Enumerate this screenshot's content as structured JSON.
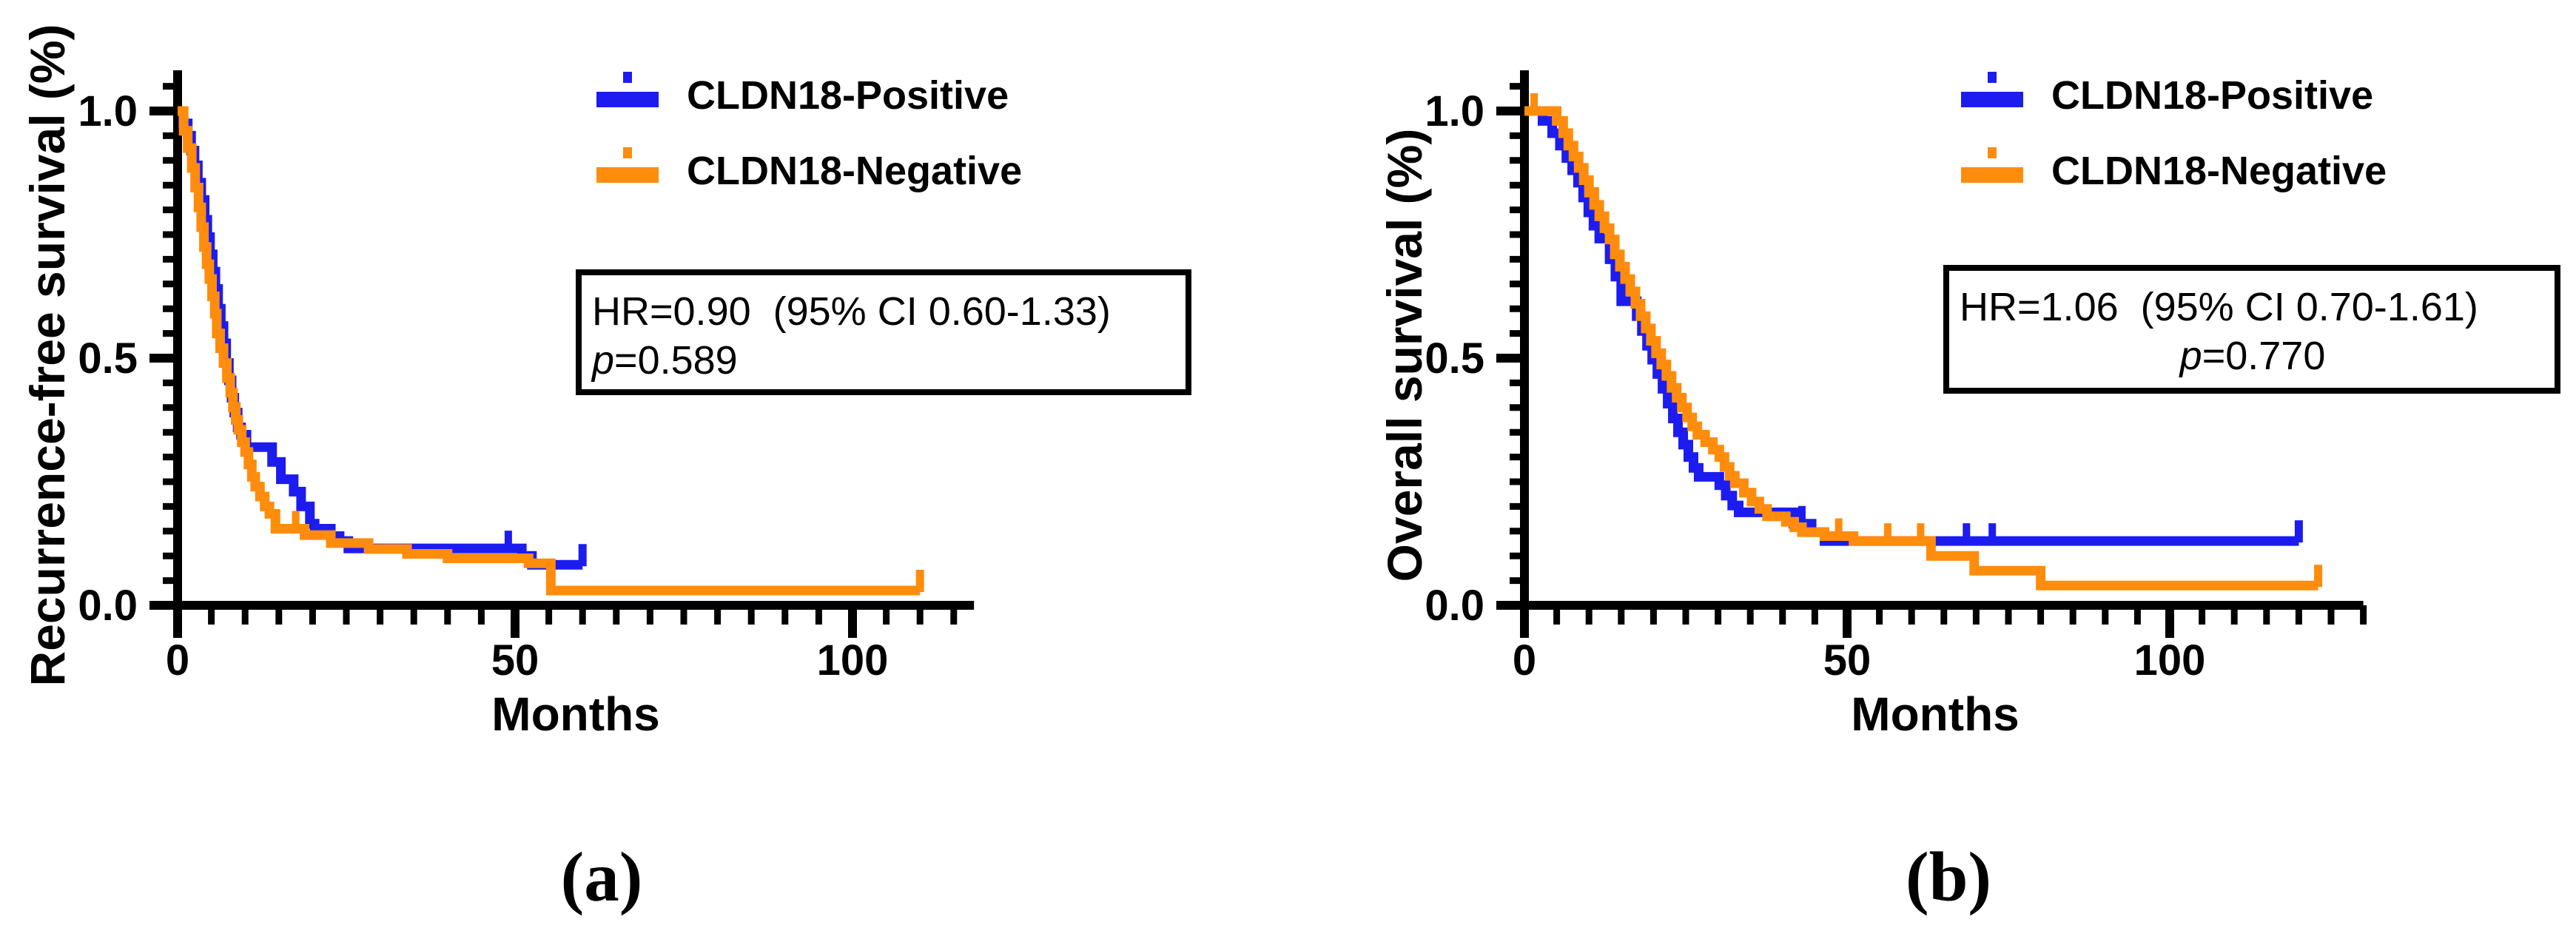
{
  "chart_data": [
    {
      "type": "line",
      "subtype": "kaplan-meier-step",
      "panel_label": "(a)",
      "ylabel": "Recurrence-free survival (%)",
      "xlabel": "Months",
      "xlim": [
        0,
        118
      ],
      "ylim": [
        0,
        1.08
      ],
      "grid": false,
      "legend_position": "top-right-inside",
      "x_ticks": {
        "major": [
          0,
          50,
          100
        ],
        "labels": [
          "0",
          "50",
          "100"
        ],
        "minor_step": 5
      },
      "y_ticks": {
        "major": [
          0,
          0.5,
          1.0
        ],
        "labels": [
          "0.0",
          "0.5",
          "1.0"
        ],
        "minor_step": 0.05
      },
      "annotation": {
        "line1": "HR=0.90  (95% CI 0.60-1.33)",
        "p_symbol": "p",
        "p_value": "=0.589"
      },
      "series": [
        {
          "name": "CLDN18-Positive",
          "color": "#1c1cf0",
          "steps": [
            [
              0,
              1
            ],
            [
              0.8,
              0.975
            ],
            [
              1.5,
              0.95
            ],
            [
              2,
              0.92
            ],
            [
              2.5,
              0.89
            ],
            [
              3,
              0.855
            ],
            [
              3.5,
              0.82
            ],
            [
              4,
              0.78
            ],
            [
              4.4,
              0.745
            ],
            [
              4.8,
              0.71
            ],
            [
              5.2,
              0.675
            ],
            [
              5.6,
              0.64
            ],
            [
              6,
              0.6
            ],
            [
              6.4,
              0.565
            ],
            [
              6.8,
              0.53
            ],
            [
              7.2,
              0.49
            ],
            [
              7.6,
              0.455
            ],
            [
              8,
              0.42
            ],
            [
              8.4,
              0.39
            ],
            [
              8.9,
              0.36
            ],
            [
              9.4,
              0.345
            ],
            [
              10.2,
              0.32
            ],
            [
              14,
              0.29
            ],
            [
              15.3,
              0.255
            ],
            [
              17.2,
              0.23
            ],
            [
              18.3,
              0.2
            ],
            [
              19.6,
              0.165
            ],
            [
              20.3,
              0.155
            ],
            [
              22.7,
              0.14
            ],
            [
              24,
              0.13
            ],
            [
              25.3,
              0.115
            ],
            [
              51,
              0.1
            ],
            [
              52.5,
              0.082
            ],
            [
              60,
              0.082
            ]
          ],
          "censors": [
            [
              49,
              0.115
            ]
          ],
          "end_tick": true
        },
        {
          "name": "CLDN18-Negative",
          "color": "#ff8c0c",
          "steps": [
            [
              0,
              1
            ],
            [
              0.9,
              0.96
            ],
            [
              1.5,
              0.925
            ],
            [
              2.1,
              0.885
            ],
            [
              2.6,
              0.845
            ],
            [
              3.1,
              0.805
            ],
            [
              3.5,
              0.765
            ],
            [
              3.9,
              0.725
            ],
            [
              4.3,
              0.69
            ],
            [
              4.7,
              0.66
            ],
            [
              5.1,
              0.625
            ],
            [
              5.5,
              0.59
            ],
            [
              5.8,
              0.55
            ],
            [
              6.3,
              0.52
            ],
            [
              6.8,
              0.49
            ],
            [
              7.3,
              0.46
            ],
            [
              7.8,
              0.43
            ],
            [
              8.2,
              0.4
            ],
            [
              8.6,
              0.375
            ],
            [
              9,
              0.355
            ],
            [
              9.5,
              0.33
            ],
            [
              10,
              0.31
            ],
            [
              10.5,
              0.285
            ],
            [
              11,
              0.26
            ],
            [
              11.5,
              0.24
            ],
            [
              12.2,
              0.22
            ],
            [
              12.9,
              0.2
            ],
            [
              13.6,
              0.185
            ],
            [
              14.5,
              0.155
            ],
            [
              18.8,
              0.142
            ],
            [
              22.7,
              0.126
            ],
            [
              28.3,
              0.114
            ],
            [
              34,
              0.104
            ],
            [
              40,
              0.095
            ],
            [
              52,
              0.085
            ],
            [
              55.3,
              0.03
            ],
            [
              110,
              0.03
            ]
          ],
          "censors": [
            [
              8.8,
              0.375
            ],
            [
              17.5,
              0.155
            ]
          ],
          "end_tick": true
        }
      ]
    },
    {
      "type": "line",
      "subtype": "kaplan-meier-step",
      "panel_label": "(b)",
      "ylabel": "Overall survival (%)",
      "xlabel": "Months",
      "xlim": [
        0,
        130
      ],
      "ylim": [
        0,
        1.08
      ],
      "grid": false,
      "legend_position": "top-right-inside",
      "x_ticks": {
        "major": [
          0,
          50,
          100
        ],
        "labels": [
          "0",
          "50",
          "100"
        ],
        "minor_step": 5
      },
      "y_ticks": {
        "major": [
          0,
          0.5,
          1.0
        ],
        "labels": [
          "0.0",
          "0.5",
          "1.0"
        ],
        "minor_step": 0.05
      },
      "annotation": {
        "line1": "HR=1.06  (95% CI 0.70-1.61)",
        "p_symbol": "p",
        "p_value": "=0.770"
      },
      "series": [
        {
          "name": "CLDN18-Positive",
          "color": "#1c1cf0",
          "steps": [
            [
              0,
              1
            ],
            [
              2.8,
              0.98
            ],
            [
              4.3,
              0.955
            ],
            [
              5.5,
              0.93
            ],
            [
              6.5,
              0.905
            ],
            [
              7.4,
              0.88
            ],
            [
              8.3,
              0.855
            ],
            [
              9.1,
              0.825
            ],
            [
              9.9,
              0.795
            ],
            [
              10.7,
              0.768
            ],
            [
              11.6,
              0.742
            ],
            [
              13.2,
              0.7
            ],
            [
              14.1,
              0.665
            ],
            [
              15,
              0.615
            ],
            [
              17.4,
              0.585
            ],
            [
              18.2,
              0.555
            ],
            [
              19,
              0.525
            ],
            [
              19.8,
              0.497
            ],
            [
              20.6,
              0.468
            ],
            [
              21.4,
              0.438
            ],
            [
              22.2,
              0.408
            ],
            [
              23,
              0.378
            ],
            [
              23.8,
              0.35
            ],
            [
              24.6,
              0.325
            ],
            [
              25.4,
              0.3
            ],
            [
              26.2,
              0.278
            ],
            [
              27,
              0.26
            ],
            [
              30.2,
              0.243
            ],
            [
              31.2,
              0.222
            ],
            [
              32.2,
              0.202
            ],
            [
              33.2,
              0.188
            ],
            [
              41.7,
              0.165
            ],
            [
              44.5,
              0.148
            ],
            [
              46.5,
              0.13
            ],
            [
              120,
              0.13
            ]
          ],
          "censors": [
            [
              43,
              0.165
            ],
            [
              68.5,
              0.13
            ],
            [
              72.5,
              0.13
            ]
          ],
          "end_tick": true
        },
        {
          "name": "CLDN18-Negative",
          "color": "#ff8c0c",
          "steps": [
            [
              0,
              1
            ],
            [
              5,
              0.98
            ],
            [
              6,
              0.955
            ],
            [
              6.8,
              0.93
            ],
            [
              7.6,
              0.908
            ],
            [
              8.4,
              0.885
            ],
            [
              9.2,
              0.86
            ],
            [
              10,
              0.835
            ],
            [
              10.8,
              0.81
            ],
            [
              11.6,
              0.787
            ],
            [
              12.4,
              0.763
            ],
            [
              13.2,
              0.74
            ],
            [
              14,
              0.71
            ],
            [
              14.8,
              0.685
            ],
            [
              15.6,
              0.66
            ],
            [
              16.4,
              0.635
            ],
            [
              17.2,
              0.61
            ],
            [
              18,
              0.585
            ],
            [
              18.8,
              0.56
            ],
            [
              19.6,
              0.535
            ],
            [
              20.4,
              0.51
            ],
            [
              21.2,
              0.487
            ],
            [
              22,
              0.464
            ],
            [
              22.8,
              0.44
            ],
            [
              23.6,
              0.42
            ],
            [
              24.4,
              0.4
            ],
            [
              25.2,
              0.38
            ],
            [
              26,
              0.362
            ],
            [
              26.8,
              0.345
            ],
            [
              28,
              0.33
            ],
            [
              29.2,
              0.315
            ],
            [
              30.2,
              0.3
            ],
            [
              31,
              0.28
            ],
            [
              31.8,
              0.262
            ],
            [
              32.6,
              0.247
            ],
            [
              34,
              0.228
            ],
            [
              35.2,
              0.21
            ],
            [
              36.4,
              0.195
            ],
            [
              37.6,
              0.18
            ],
            [
              40.5,
              0.169
            ],
            [
              41.8,
              0.158
            ],
            [
              43,
              0.148
            ],
            [
              46.5,
              0.14
            ],
            [
              51,
              0.13
            ],
            [
              63,
              0.1
            ],
            [
              69.7,
              0.07
            ],
            [
              80,
              0.04
            ],
            [
              123,
              0.04
            ]
          ],
          "censors": [
            [
              1.5,
              1
            ],
            [
              11,
              0.81
            ],
            [
              48.7,
              0.14
            ],
            [
              56.3,
              0.13
            ],
            [
              61.4,
              0.13
            ]
          ],
          "end_tick": true
        }
      ]
    }
  ],
  "colors": {
    "positive": "#1c1cf0",
    "negative": "#ff8c0c",
    "axis": "#000000",
    "background": "#ffffff"
  }
}
